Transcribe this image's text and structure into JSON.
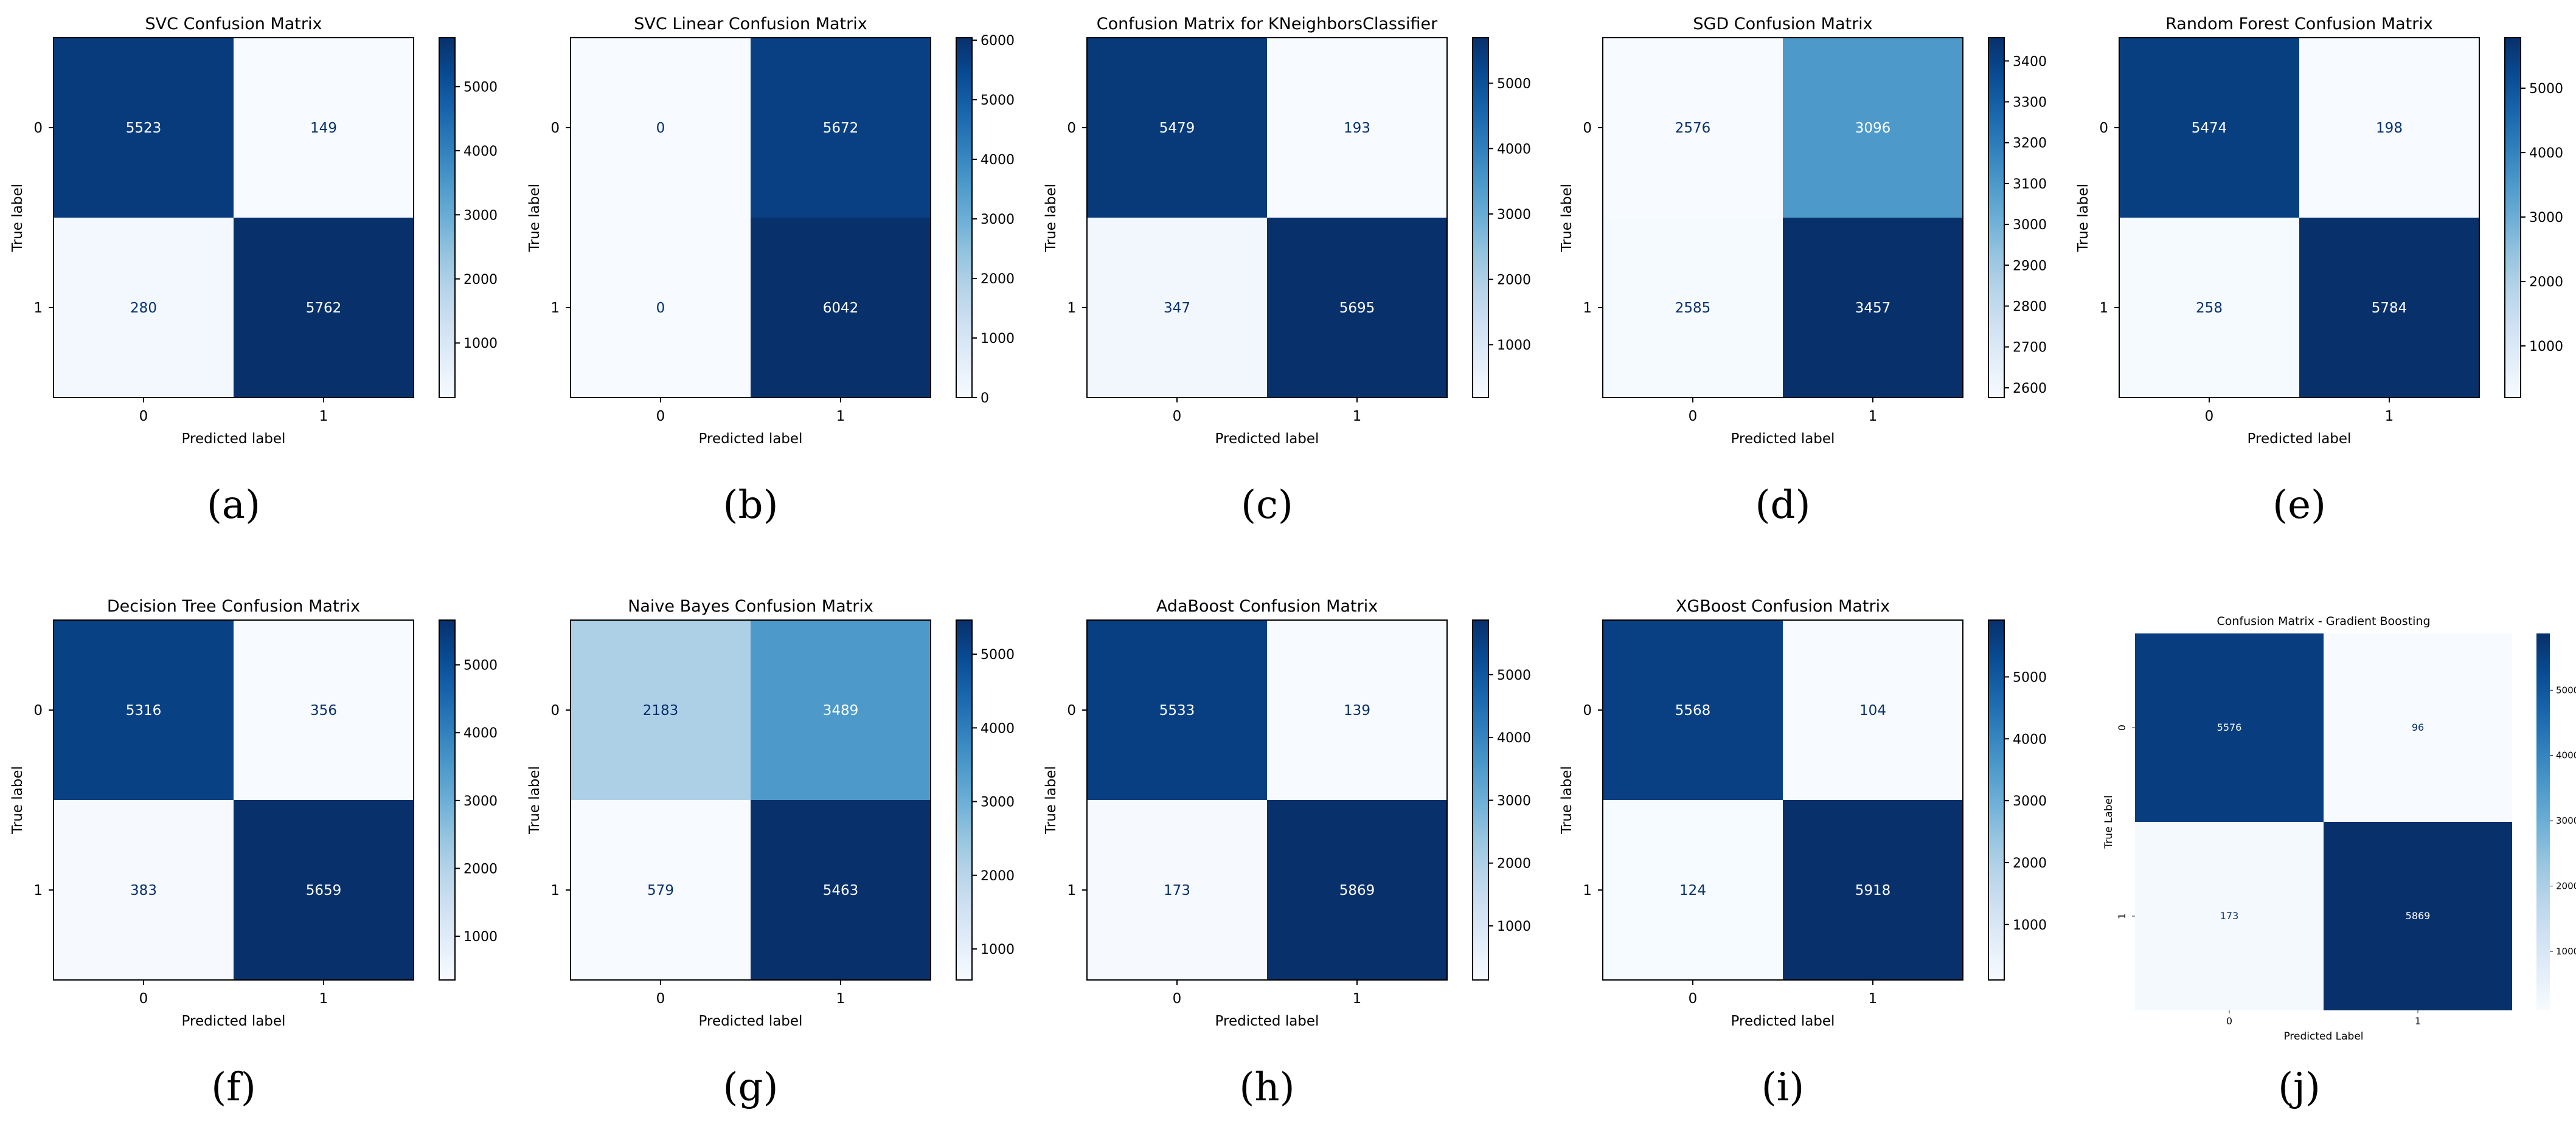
{
  "figure": {
    "panel_labels": [
      "(a)",
      "(b)",
      "(c)",
      "(d)",
      "(e)",
      "(f)",
      "(g)",
      "(h)",
      "(i)",
      "(j)"
    ]
  },
  "chart_data": [
    {
      "type": "heatmap",
      "id": "a",
      "title": "SVC Confusion Matrix",
      "xlabel": "Predicted label",
      "ylabel": "True label",
      "x_categories": [
        "0",
        "1"
      ],
      "y_categories": [
        "0",
        "1"
      ],
      "values": [
        [
          5523,
          149
        ],
        [
          280,
          5762
        ]
      ],
      "colorbar": {
        "range": [
          149,
          5762
        ],
        "ticks": [
          1000,
          2000,
          3000,
          4000,
          5000
        ]
      },
      "colormap": "Blues"
    },
    {
      "type": "heatmap",
      "id": "b",
      "title": "SVC Linear Confusion Matrix",
      "xlabel": "Predicted label",
      "ylabel": "True label",
      "x_categories": [
        "0",
        "1"
      ],
      "y_categories": [
        "0",
        "1"
      ],
      "values": [
        [
          0,
          5672
        ],
        [
          0,
          6042
        ]
      ],
      "colorbar": {
        "range": [
          0,
          6042
        ],
        "ticks": [
          0,
          1000,
          2000,
          3000,
          4000,
          5000,
          6000
        ]
      },
      "colormap": "Blues"
    },
    {
      "type": "heatmap",
      "id": "c",
      "title": "Confusion Matrix for KNeighborsClassifier",
      "xlabel": "Predicted label",
      "ylabel": "True label",
      "x_categories": [
        "0",
        "1"
      ],
      "y_categories": [
        "0",
        "1"
      ],
      "values": [
        [
          5479,
          193
        ],
        [
          347,
          5695
        ]
      ],
      "colorbar": {
        "range": [
          193,
          5695
        ],
        "ticks": [
          1000,
          2000,
          3000,
          4000,
          5000
        ]
      },
      "colormap": "Blues"
    },
    {
      "type": "heatmap",
      "id": "d",
      "title": "SGD Confusion Matrix",
      "xlabel": "Predicted label",
      "ylabel": "True label",
      "x_categories": [
        "0",
        "1"
      ],
      "y_categories": [
        "0",
        "1"
      ],
      "values": [
        [
          2576,
          3096
        ],
        [
          2585,
          3457
        ]
      ],
      "colorbar": {
        "range": [
          2576,
          3457
        ],
        "ticks": [
          2600,
          2700,
          2800,
          2900,
          3000,
          3100,
          3200,
          3300,
          3400
        ]
      },
      "colormap": "Blues"
    },
    {
      "type": "heatmap",
      "id": "e",
      "title": "Random Forest Confusion Matrix",
      "xlabel": "Predicted label",
      "ylabel": "True label",
      "x_categories": [
        "0",
        "1"
      ],
      "y_categories": [
        "0",
        "1"
      ],
      "values": [
        [
          5474,
          198
        ],
        [
          258,
          5784
        ]
      ],
      "colorbar": {
        "range": [
          198,
          5784
        ],
        "ticks": [
          1000,
          2000,
          3000,
          4000,
          5000
        ]
      },
      "colormap": "Blues"
    },
    {
      "type": "heatmap",
      "id": "f",
      "title": "Decision Tree Confusion Matrix",
      "xlabel": "Predicted label",
      "ylabel": "True label",
      "x_categories": [
        "0",
        "1"
      ],
      "y_categories": [
        "0",
        "1"
      ],
      "values": [
        [
          5316,
          356
        ],
        [
          383,
          5659
        ]
      ],
      "colorbar": {
        "range": [
          356,
          5659
        ],
        "ticks": [
          1000,
          2000,
          3000,
          4000,
          5000
        ]
      },
      "colormap": "Blues"
    },
    {
      "type": "heatmap",
      "id": "g",
      "title": "Naive Bayes Confusion Matrix",
      "xlabel": "Predicted label",
      "ylabel": "True label",
      "x_categories": [
        "0",
        "1"
      ],
      "y_categories": [
        "0",
        "1"
      ],
      "values": [
        [
          2183,
          3489
        ],
        [
          579,
          5463
        ]
      ],
      "colorbar": {
        "range": [
          579,
          5463
        ],
        "ticks": [
          1000,
          2000,
          3000,
          4000,
          5000
        ]
      },
      "colormap": "Blues"
    },
    {
      "type": "heatmap",
      "id": "h",
      "title": "AdaBoost Confusion Matrix",
      "xlabel": "Predicted label",
      "ylabel": "True label",
      "x_categories": [
        "0",
        "1"
      ],
      "y_categories": [
        "0",
        "1"
      ],
      "values": [
        [
          5533,
          139
        ],
        [
          173,
          5869
        ]
      ],
      "colorbar": {
        "range": [
          139,
          5869
        ],
        "ticks": [
          1000,
          2000,
          3000,
          4000,
          5000
        ]
      },
      "colormap": "Blues"
    },
    {
      "type": "heatmap",
      "id": "i",
      "title": "XGBoost Confusion Matrix",
      "xlabel": "Predicted label",
      "ylabel": "True label",
      "x_categories": [
        "0",
        "1"
      ],
      "y_categories": [
        "0",
        "1"
      ],
      "values": [
        [
          5568,
          104
        ],
        [
          124,
          5918
        ]
      ],
      "colorbar": {
        "range": [
          104,
          5918
        ],
        "ticks": [
          1000,
          2000,
          3000,
          4000,
          5000
        ]
      },
      "colormap": "Blues"
    },
    {
      "type": "heatmap",
      "id": "j",
      "title": "Confusion Matrix - Gradient Boosting",
      "xlabel": "Predicted Label",
      "ylabel": "True Label",
      "x_categories": [
        "0",
        "1"
      ],
      "y_categories": [
        "0",
        "1"
      ],
      "values": [
        [
          5576,
          96
        ],
        [
          173,
          5869
        ]
      ],
      "colorbar": {
        "range": [
          96,
          5869
        ],
        "ticks": [
          1000,
          2000,
          3000,
          4000,
          5000
        ]
      },
      "colormap": "Blues",
      "style": "seaborn"
    }
  ]
}
